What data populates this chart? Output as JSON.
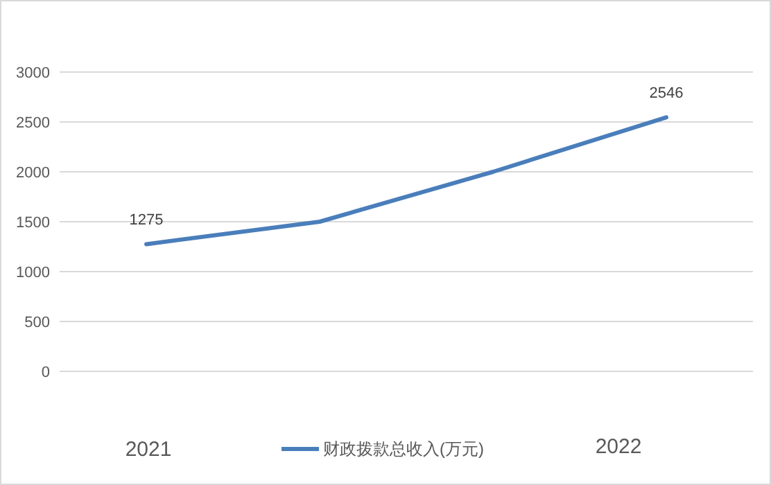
{
  "chart_data": {
    "type": "line",
    "categories": [
      null,
      null,
      null,
      null
    ],
    "series": [
      {
        "name": "财政拨款总收入(万元)",
        "color": "#4a7ebb",
        "values": [
          1275,
          1500,
          2000,
          2546
        ],
        "value_labels": [
          "1275",
          null,
          null,
          "2546"
        ]
      }
    ],
    "ylim": [
      0,
      3000
    ],
    "yticks": [
      0,
      500,
      1000,
      1500,
      2000,
      2500,
      3000
    ],
    "grid": "y",
    "legend": "bottom",
    "marker": "none",
    "line_style": "solid",
    "annotations": [
      "2021",
      "2022"
    ]
  }
}
